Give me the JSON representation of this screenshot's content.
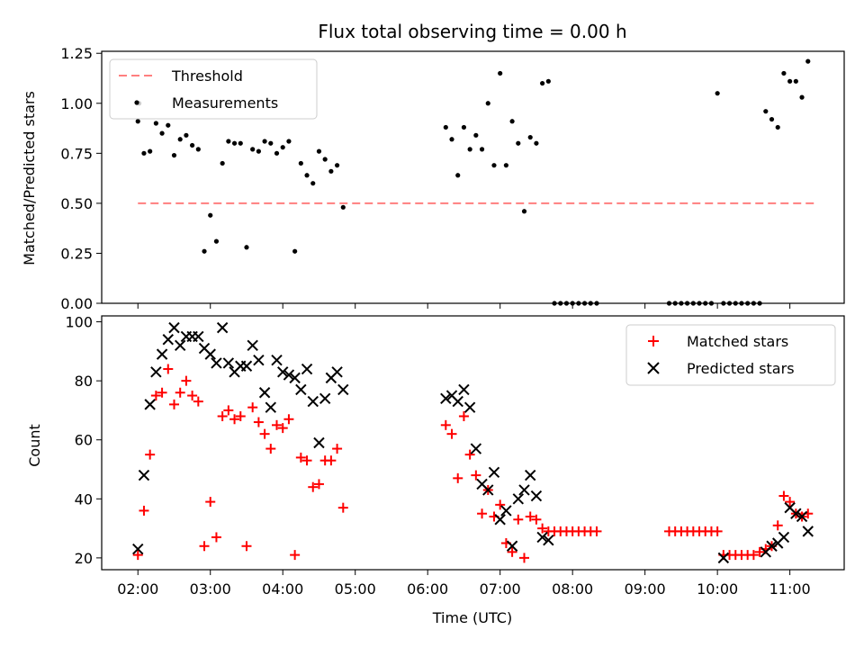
{
  "chart_data": [
    {
      "type": "scatter",
      "title": "Flux total observing time = 0.00 h",
      "xlabel": "",
      "ylabel": "Matched/Predicted stars",
      "xlim": [
        "01:30",
        "11:45"
      ],
      "ylim": [
        0,
        1.26
      ],
      "yticks": [
        "0.00",
        "0.25",
        "0.50",
        "0.75",
        "1.00",
        "1.25"
      ],
      "legend_position": "top-left",
      "grid": false,
      "series": [
        {
          "name": "Threshold",
          "kind": "dashed-line",
          "color": "#ff7f7f",
          "x": [
            "02:00",
            "11:20"
          ],
          "y": [
            0.5,
            0.5
          ]
        },
        {
          "name": "Measurements",
          "kind": "points",
          "color": "#000000",
          "x": [
            "02:00",
            "02:01",
            "02:05",
            "02:10",
            "02:15",
            "02:20",
            "02:25",
            "02:30",
            "02:35",
            "02:40",
            "02:45",
            "02:50",
            "02:55",
            "03:00",
            "03:05",
            "03:10",
            "03:15",
            "03:20",
            "03:25",
            "03:30",
            "03:35",
            "03:40",
            "03:45",
            "03:50",
            "03:55",
            "04:00",
            "04:05",
            "04:10",
            "04:15",
            "04:20",
            "04:25",
            "04:30",
            "04:35",
            "04:40",
            "04:45",
            "04:50",
            "06:15",
            "06:20",
            "06:25",
            "06:30",
            "06:35",
            "06:40",
            "06:45",
            "06:50",
            "06:55",
            "07:00",
            "07:05",
            "07:10",
            "07:15",
            "07:20",
            "07:25",
            "07:30",
            "07:35",
            "07:40",
            "07:45",
            "07:50",
            "07:55",
            "08:00",
            "08:05",
            "08:10",
            "08:15",
            "08:20",
            "09:20",
            "09:25",
            "09:30",
            "09:35",
            "09:40",
            "09:45",
            "09:50",
            "09:55",
            "10:00",
            "10:05",
            "10:10",
            "10:15",
            "10:20",
            "10:25",
            "10:30",
            "10:35",
            "10:40",
            "10:45",
            "10:50",
            "10:55",
            "11:00",
            "11:05",
            "11:10",
            "11:15"
          ],
          "y": [
            0.91,
            1.0,
            0.75,
            0.76,
            0.9,
            0.85,
            0.89,
            0.74,
            0.82,
            0.84,
            0.79,
            0.77,
            0.26,
            0.44,
            0.31,
            0.7,
            0.81,
            0.8,
            0.8,
            0.28,
            0.77,
            0.76,
            0.81,
            0.8,
            0.75,
            0.78,
            0.81,
            0.26,
            0.7,
            0.64,
            0.6,
            0.76,
            0.72,
            0.66,
            0.69,
            0.48,
            0.88,
            0.82,
            0.64,
            0.88,
            0.77,
            0.84,
            0.77,
            1.0,
            0.69,
            1.15,
            0.69,
            0.91,
            0.8,
            0.46,
            0.83,
            0.8,
            1.1,
            1.11,
            0.0,
            0.0,
            0.0,
            0.0,
            0.0,
            0.0,
            0.0,
            0.0,
            0.0,
            0.0,
            0.0,
            0.0,
            0.0,
            0.0,
            0.0,
            0.0,
            1.05,
            0.0,
            0.0,
            0.0,
            0.0,
            0.0,
            0.0,
            0.0,
            0.96,
            0.92,
            0.88,
            1.15,
            1.11,
            1.11,
            1.03,
            1.21
          ]
        }
      ]
    },
    {
      "type": "scatter",
      "title": "",
      "xlabel": "Time (UTC)",
      "ylabel": "Count",
      "xlim": [
        "01:30",
        "11:45"
      ],
      "ylim": [
        16,
        102
      ],
      "xticks": [
        "02:00",
        "03:00",
        "04:00",
        "05:00",
        "06:00",
        "07:00",
        "08:00",
        "09:00",
        "10:00",
        "11:00"
      ],
      "yticks": [
        "20",
        "40",
        "60",
        "80",
        "100"
      ],
      "legend_position": "top-right",
      "grid": false,
      "series": [
        {
          "name": "Matched stars",
          "kind": "plus",
          "color": "#ff0000",
          "x": [
            "02:00",
            "02:05",
            "02:10",
            "02:15",
            "02:20",
            "02:25",
            "02:30",
            "02:35",
            "02:40",
            "02:45",
            "02:50",
            "02:55",
            "03:00",
            "03:05",
            "03:10",
            "03:15",
            "03:20",
            "03:25",
            "03:30",
            "03:35",
            "03:40",
            "03:45",
            "03:50",
            "03:55",
            "04:00",
            "04:05",
            "04:10",
            "04:15",
            "04:20",
            "04:25",
            "04:30",
            "04:35",
            "04:40",
            "04:45",
            "04:50",
            "06:15",
            "06:20",
            "06:25",
            "06:30",
            "06:35",
            "06:40",
            "06:45",
            "06:50",
            "06:55",
            "07:00",
            "07:05",
            "07:10",
            "07:15",
            "07:20",
            "07:25",
            "07:30",
            "07:35",
            "07:40",
            "07:45",
            "07:50",
            "07:55",
            "08:00",
            "08:05",
            "08:10",
            "08:15",
            "08:20",
            "09:20",
            "09:25",
            "09:30",
            "09:35",
            "09:40",
            "09:45",
            "09:50",
            "09:55",
            "10:00",
            "10:05",
            "10:10",
            "10:15",
            "10:20",
            "10:25",
            "10:30",
            "10:35",
            "10:40",
            "10:45",
            "10:50",
            "10:55",
            "11:00",
            "11:05",
            "11:10",
            "11:15"
          ],
          "y": [
            21,
            36,
            55,
            75,
            76,
            84,
            72,
            76,
            80,
            75,
            73,
            24,
            39,
            27,
            68,
            70,
            67,
            68,
            24,
            71,
            66,
            62,
            57,
            65,
            64,
            67,
            21,
            54,
            53,
            44,
            45,
            53,
            53,
            57,
            37,
            65,
            62,
            47,
            68,
            55,
            48,
            35,
            43,
            34,
            38,
            25,
            22,
            33,
            20,
            34,
            33,
            30,
            29,
            29,
            29,
            29,
            29,
            29,
            29,
            29,
            29,
            29,
            29,
            29,
            29,
            29,
            29,
            29,
            29,
            29,
            21,
            21,
            21,
            21,
            21,
            21,
            22,
            23,
            24,
            31,
            41,
            39,
            35,
            34,
            35
          ]
        },
        {
          "name": "Predicted stars",
          "kind": "x",
          "color": "#000000",
          "x": [
            "02:00",
            "02:05",
            "02:10",
            "02:15",
            "02:20",
            "02:25",
            "02:30",
            "02:35",
            "02:40",
            "02:45",
            "02:50",
            "02:55",
            "03:00",
            "03:05",
            "03:10",
            "03:15",
            "03:20",
            "03:25",
            "03:30",
            "03:35",
            "03:40",
            "03:45",
            "03:50",
            "03:55",
            "04:00",
            "04:05",
            "04:10",
            "04:15",
            "04:20",
            "04:25",
            "04:30",
            "04:35",
            "04:40",
            "04:45",
            "04:50",
            "06:15",
            "06:20",
            "06:25",
            "06:30",
            "06:35",
            "06:40",
            "06:45",
            "06:50",
            "06:55",
            "07:00",
            "07:05",
            "07:10",
            "07:15",
            "07:20",
            "07:25",
            "07:30",
            "07:35",
            "07:40",
            "10:05",
            "10:40",
            "10:45",
            "10:50",
            "10:55",
            "11:00",
            "11:05",
            "11:10",
            "11:15"
          ],
          "y": [
            23,
            48,
            72,
            83,
            89,
            94,
            98,
            92,
            95,
            95,
            95,
            91,
            89,
            86,
            98,
            86,
            83,
            85,
            85,
            92,
            87,
            76,
            71,
            87,
            83,
            82,
            81,
            77,
            84,
            73,
            59,
            74,
            81,
            83,
            77,
            74,
            75,
            73,
            77,
            71,
            57,
            45,
            43,
            49,
            33,
            36,
            24,
            40,
            43,
            48,
            41,
            27,
            26,
            20,
            22,
            24,
            25,
            27,
            37,
            35,
            34,
            29
          ]
        }
      ]
    }
  ]
}
